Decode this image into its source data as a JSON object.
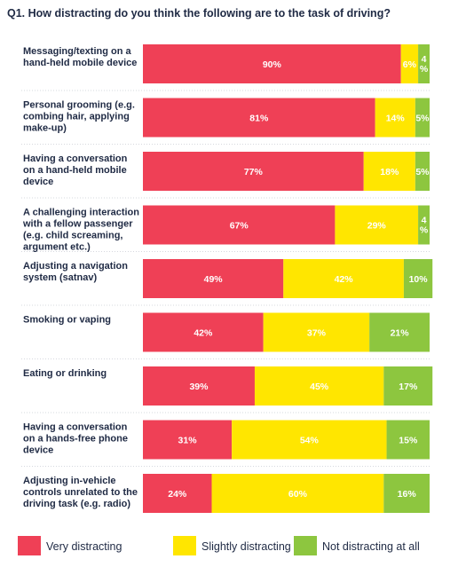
{
  "chart_data": {
    "type": "bar",
    "orientation": "horizontal",
    "stacked": true,
    "title": "Q1. How distracting do you think the following are to the task of driving?",
    "categories": [
      [
        "Messaging/texting on a",
        "hand-held mobile device"
      ],
      [
        "Personal grooming (e.g.",
        "combing hair, applying",
        "make-up)"
      ],
      [
        "Having a conversation",
        "on a hand-held mobile",
        "device"
      ],
      [
        "A challenging interaction",
        "with a fellow passenger",
        "(e.g. child screaming,",
        "argument etc.)"
      ],
      [
        "Adjusting a navigation",
        "system (satnav)"
      ],
      [
        "Smoking or vaping"
      ],
      [
        "Eating or drinking"
      ],
      [
        "Having a conversation",
        "on a hands-free phone",
        "device"
      ],
      [
        "Adjusting in-vehicle",
        "controls unrelated to the",
        "driving task (e.g. radio)"
      ]
    ],
    "series": [
      {
        "name": "Very distracting",
        "color": "#ef4056",
        "values": [
          90,
          81,
          77,
          67,
          49,
          42,
          39,
          31,
          24
        ]
      },
      {
        "name": "Slightly distracting",
        "color": "#ffe600",
        "values": [
          6,
          14,
          18,
          29,
          42,
          37,
          45,
          54,
          60
        ]
      },
      {
        "name": "Not distracting at all",
        "color": "#8dc63f",
        "values": [
          4,
          5,
          5,
          4,
          10,
          21,
          17,
          15,
          16
        ]
      }
    ],
    "value_labels": [
      [
        "90%",
        "6%",
        [
          "4",
          "%"
        ]
      ],
      [
        "81%",
        "14%",
        "5%"
      ],
      [
        "77%",
        "18%",
        "5%"
      ],
      [
        "67%",
        "29%",
        [
          "4",
          "%"
        ]
      ],
      [
        "49%",
        "42%",
        "10%"
      ],
      [
        "42%",
        "37%",
        "21%"
      ],
      [
        "39%",
        "45%",
        "17%"
      ],
      [
        "31%",
        "54%",
        "15%"
      ],
      [
        "24%",
        "60%",
        "16%"
      ]
    ],
    "xlim": [
      0,
      100
    ],
    "legend_position": "bottom",
    "grid": false
  }
}
